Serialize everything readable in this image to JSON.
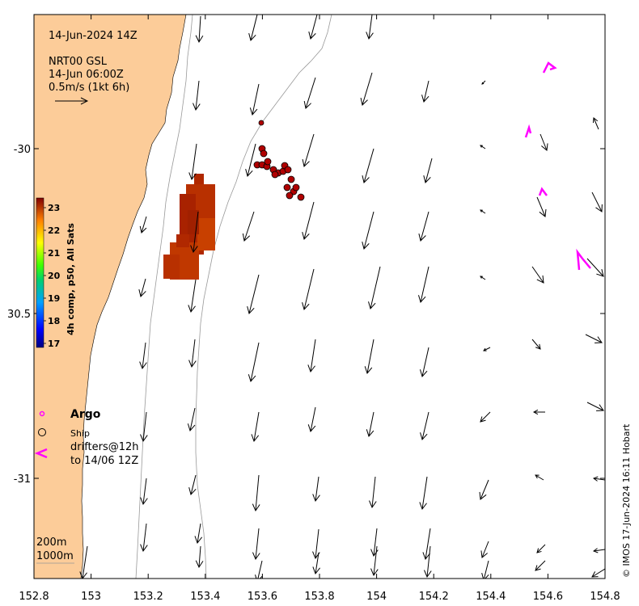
{
  "map": {
    "datetime": "14-Jun-2024 14Z",
    "product": "NRT00 GSL",
    "product_time": "14-Jun 06:00Z",
    "scale_label": "0.5m/s (1kt 6h)",
    "colorbar_label": "4h comp, p50, All Sats",
    "colorbar_ticks": [
      "23",
      "22",
      "21",
      "20",
      "19",
      "18",
      "17"
    ],
    "colors": {
      "land": "#fccc99",
      "arrow": "#000000",
      "argo": "#ff00ff",
      "drifter": "#ff00ff",
      "sst_patch": "#b32a00"
    },
    "legend": {
      "argo": "Argo",
      "ship": "Ship",
      "drifters_line1": "drifters@12h",
      "drifters_line2": "to 14/06 12Z"
    },
    "contour_labels": [
      "200m",
      "1000m"
    ],
    "credit": "© IMOS 17-Jun-2024 16:11 Hobart",
    "x_ticks": [
      "152.8",
      "153",
      "153.2",
      "153.4",
      "153.6",
      "153.8",
      "154",
      "154.2",
      "154.4",
      "154.6",
      "154.8"
    ],
    "y_ticks": [
      "-30",
      "30.5",
      "-31"
    ]
  }
}
